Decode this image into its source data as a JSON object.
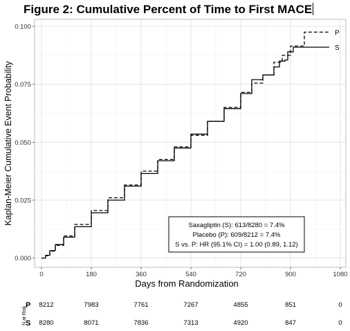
{
  "title": "Figure 2: Cumulative Percent of Time to First MACE",
  "chart_data": {
    "type": "line",
    "xlabel": "Days from Randomization",
    "ylabel": "Kaplan-Meier Cumulative Event Probability",
    "xlim": [
      -25,
      1100
    ],
    "ylim": [
      -0.004,
      0.103
    ],
    "xticks": [
      0,
      180,
      360,
      540,
      720,
      900,
      1080
    ],
    "yticks": [
      0.0,
      0.025,
      0.05,
      0.075,
      0.1
    ],
    "ytick_labels": [
      "0.000",
      "0.025",
      "0.050",
      "0.075",
      "0.100"
    ],
    "grid": true,
    "series": [
      {
        "name": "P",
        "style": "dashed",
        "x": [
          0,
          15,
          30,
          50,
          80,
          120,
          180,
          240,
          300,
          360,
          420,
          480,
          540,
          600,
          660,
          720,
          760,
          800,
          840,
          870,
          900,
          930,
          950,
          1040
        ],
        "y": [
          0.0,
          0.001,
          0.003,
          0.0055,
          0.0095,
          0.0145,
          0.0205,
          0.026,
          0.0315,
          0.0375,
          0.0425,
          0.048,
          0.053,
          0.059,
          0.065,
          0.0715,
          0.0755,
          0.079,
          0.0845,
          0.0875,
          0.0915,
          0.0915,
          0.0975,
          0.0975
        ]
      },
      {
        "name": "S",
        "style": "solid",
        "x": [
          0,
          15,
          30,
          50,
          80,
          120,
          180,
          240,
          300,
          360,
          420,
          480,
          540,
          600,
          660,
          720,
          760,
          800,
          840,
          860,
          880,
          890,
          910,
          940,
          1040
        ],
        "y": [
          0.0,
          0.0012,
          0.0032,
          0.0058,
          0.009,
          0.0135,
          0.0195,
          0.025,
          0.031,
          0.0365,
          0.042,
          0.0475,
          0.0535,
          0.059,
          0.0645,
          0.071,
          0.077,
          0.079,
          0.0825,
          0.085,
          0.0855,
          0.089,
          0.091,
          0.091,
          0.091
        ]
      }
    ],
    "legend_box": {
      "lines": [
        "Saxagliptin (S): 613/8280 = 7.4%",
        "Placebo (P): 609/8212 = 7.4%",
        "S vs. P: HR (95.1% CI) = 1.00 (0.89, 1.12)"
      ],
      "placement": "bottom-right"
    },
    "risk_table": {
      "label": "N at Risk",
      "rows": [
        {
          "group": "P",
          "values": [
            "8212",
            "7983",
            "7761",
            "7267",
            "4855",
            "851",
            "0"
          ]
        },
        {
          "group": "S",
          "values": [
            "8280",
            "8071",
            "7836",
            "7313",
            "4920",
            "847",
            "0"
          ]
        }
      ]
    }
  }
}
